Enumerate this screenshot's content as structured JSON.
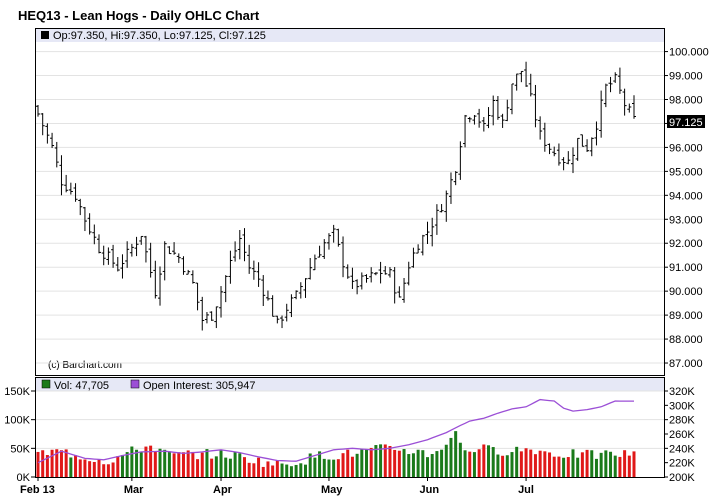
{
  "chart_data": {
    "type": "ohlc",
    "title": "HEQ13 - Lean Hogs - Daily OHLC Chart",
    "price_legend": "Op:97.350, Hi:97.350, Lo:97.125, Cl:97.125",
    "volume_legend": "Vol: 47,705",
    "oi_legend": "Open Interest: 305,947",
    "credit": "(c) Barchart.com",
    "last_price": "97.125",
    "price_axis": {
      "ticks": [
        "87.000",
        "88.000",
        "89.000",
        "90.000",
        "91.000",
        "92.000",
        "93.000",
        "94.000",
        "95.000",
        "96.000",
        "97.000",
        "98.000",
        "99.000",
        "100.000"
      ],
      "ylim": [
        86.5,
        100.4
      ]
    },
    "volume_axis": {
      "ticks": [
        "0K",
        "50K",
        "100K",
        "150K"
      ],
      "ylim": [
        0,
        150
      ]
    },
    "open_interest_axis": {
      "ticks": [
        "200K",
        "220K",
        "240K",
        "260K",
        "280K",
        "300K",
        "320K"
      ],
      "ylim": [
        200,
        320
      ]
    },
    "x_axis": {
      "labels": [
        "Feb 13",
        "Mar",
        "Apr",
        "May",
        "Jun",
        "Jul"
      ],
      "label_index": [
        0,
        20,
        39,
        62,
        83,
        104
      ],
      "n_days": 128
    },
    "anchors": {
      "close": [
        [
          0,
          97.4
        ],
        [
          3,
          96.0
        ],
        [
          5,
          94.6
        ],
        [
          8,
          94.0
        ],
        [
          10,
          93.0
        ],
        [
          13,
          91.8
        ],
        [
          17,
          91.0
        ],
        [
          20,
          91.8
        ],
        [
          22,
          92.4
        ],
        [
          25,
          90.0
        ],
        [
          27,
          91.9
        ],
        [
          30,
          91.4
        ],
        [
          33,
          90.3
        ],
        [
          35,
          88.8
        ],
        [
          37,
          89.0
        ],
        [
          39,
          90.0
        ],
        [
          41,
          91.2
        ],
        [
          43,
          92.2
        ],
        [
          45,
          91.0
        ],
        [
          47,
          90.5
        ],
        [
          49,
          89.6
        ],
        [
          51,
          88.6
        ],
        [
          53,
          89.3
        ],
        [
          55,
          89.8
        ],
        [
          57,
          90.6
        ],
        [
          59,
          91.4
        ],
        [
          61,
          92.0
        ],
        [
          63,
          92.4
        ],
        [
          65,
          91.2
        ],
        [
          67,
          90.2
        ],
        [
          69,
          90.4
        ],
        [
          71,
          90.6
        ],
        [
          73,
          90.8
        ],
        [
          75,
          90.7
        ],
        [
          77,
          89.6
        ],
        [
          79,
          91.1
        ],
        [
          81,
          92.0
        ],
        [
          83,
          92.5
        ],
        [
          85,
          93.2
        ],
        [
          87,
          94.0
        ],
        [
          89,
          95.2
        ],
        [
          91,
          97.3
        ],
        [
          93,
          97.5
        ],
        [
          95,
          96.8
        ],
        [
          97,
          97.9
        ],
        [
          99,
          97.0
        ],
        [
          101,
          98.7
        ],
        [
          103,
          99.2
        ],
        [
          105,
          98.0
        ],
        [
          107,
          96.5
        ],
        [
          109,
          96.0
        ],
        [
          111,
          95.6
        ],
        [
          113,
          95.4
        ],
        [
          115,
          96.3
        ],
        [
          117,
          96.0
        ],
        [
          119,
          97.0
        ],
        [
          121,
          98.5
        ],
        [
          123,
          98.8
        ],
        [
          125,
          97.8
        ],
        [
          127,
          97.125
        ]
      ],
      "volume": [
        [
          0,
          40
        ],
        [
          5,
          45
        ],
        [
          10,
          35
        ],
        [
          15,
          28
        ],
        [
          20,
          45
        ],
        [
          24,
          55
        ],
        [
          28,
          38
        ],
        [
          33,
          40
        ],
        [
          38,
          40
        ],
        [
          42,
          38
        ],
        [
          47,
          28
        ],
        [
          51,
          22
        ],
        [
          56,
          28
        ],
        [
          60,
          38
        ],
        [
          64,
          38
        ],
        [
          68,
          42
        ],
        [
          72,
          48
        ],
        [
          76,
          50
        ],
        [
          80,
          45
        ],
        [
          84,
          40
        ],
        [
          87,
          60
        ],
        [
          89,
          75
        ],
        [
          91,
          48
        ],
        [
          94,
          50
        ],
        [
          98,
          45
        ],
        [
          102,
          48
        ],
        [
          106,
          48
        ],
        [
          110,
          40
        ],
        [
          114,
          40
        ],
        [
          118,
          38
        ],
        [
          122,
          40
        ],
        [
          126,
          40
        ],
        [
          127,
          47.7
        ]
      ],
      "open_interest": [
        [
          0,
          220
        ],
        [
          5,
          236
        ],
        [
          10,
          226
        ],
        [
          14,
          224
        ],
        [
          18,
          230
        ],
        [
          22,
          235
        ],
        [
          27,
          236
        ],
        [
          31,
          233
        ],
        [
          35,
          235
        ],
        [
          39,
          238
        ],
        [
          43,
          234
        ],
        [
          47,
          228
        ],
        [
          51,
          223
        ],
        [
          55,
          222
        ],
        [
          59,
          230
        ],
        [
          63,
          238
        ],
        [
          67,
          240
        ],
        [
          71,
          238
        ],
        [
          75,
          240
        ],
        [
          79,
          245
        ],
        [
          83,
          252
        ],
        [
          87,
          262
        ],
        [
          90,
          272
        ],
        [
          92,
          278
        ],
        [
          95,
          282
        ],
        [
          98,
          289
        ],
        [
          101,
          295
        ],
        [
          104,
          298
        ],
        [
          107,
          308
        ],
        [
          110,
          306
        ],
        [
          112,
          296
        ],
        [
          114,
          292
        ],
        [
          117,
          294
        ],
        [
          120,
          298
        ],
        [
          123,
          306
        ],
        [
          126,
          305.9
        ],
        [
          127,
          305.9
        ]
      ]
    },
    "legend_colors": {
      "volume_up": "#1a7a1a",
      "volume_down": "#e01818",
      "open_interest": "#9b4fd6"
    },
    "grid": true
  }
}
